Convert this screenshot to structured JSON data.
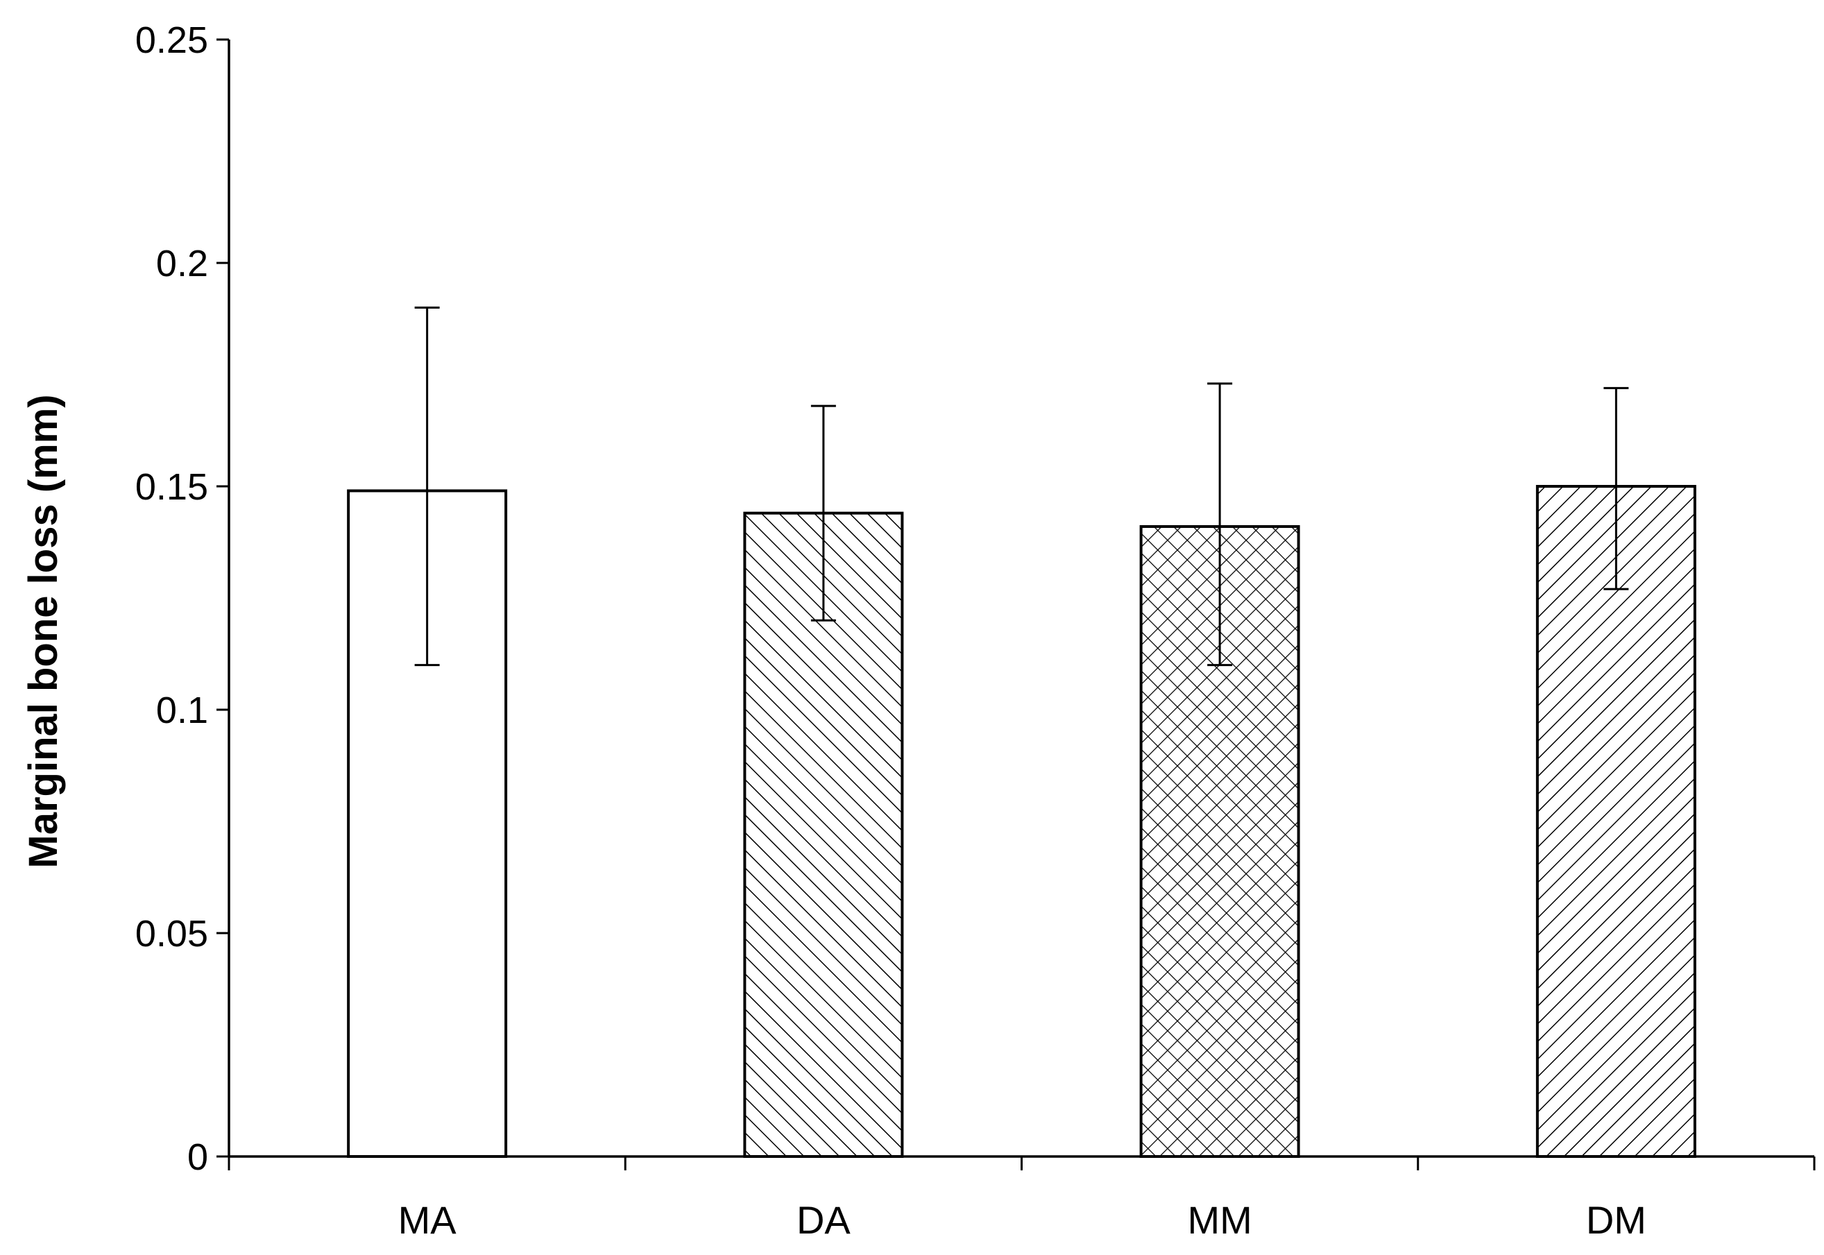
{
  "chart_data": {
    "type": "bar",
    "title": "",
    "xlabel": "",
    "ylabel": "Marginal bone loss (mm)",
    "ylim": [
      0,
      0.25
    ],
    "yticks": [
      0,
      0.05,
      0.1,
      0.15,
      0.2,
      0.25
    ],
    "ytick_labels": [
      "0",
      "0.05",
      "0.1",
      "0.15",
      "0.2",
      "0.25"
    ],
    "categories": [
      "MA",
      "DA",
      "MM",
      "DM"
    ],
    "values": [
      0.149,
      0.144,
      0.141,
      0.15
    ],
    "error_low": [
      0.11,
      0.12,
      0.11,
      0.127
    ],
    "error_high": [
      0.19,
      0.168,
      0.173,
      0.172
    ],
    "patterns": [
      "none",
      "diagonal-backslash",
      "crosshatch",
      "diagonal-slash"
    ],
    "grid": false,
    "legend": "none",
    "colors": {
      "axis": "#000000",
      "bar_fill": "#ffffff",
      "bar_stroke": "#000000"
    }
  }
}
